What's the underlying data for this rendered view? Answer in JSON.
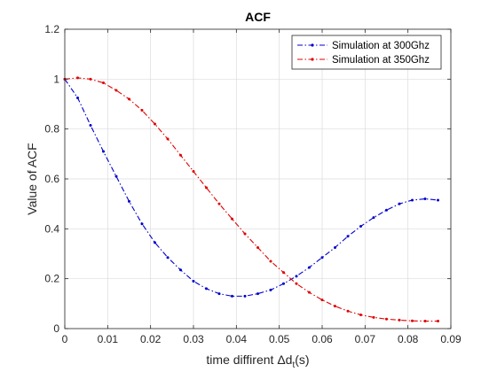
{
  "chart_data": {
    "type": "line",
    "title": "ACF",
    "xlabel_main": "time diffirent ",
    "xlabel_delta": "Δd",
    "xlabel_sub": "t",
    "xlabel_unit": "(s)",
    "ylabel": "Value of ACF",
    "xlim": [
      0,
      0.09
    ],
    "ylim": [
      0,
      1.2
    ],
    "xticks": [
      "0",
      "0.01",
      "0.02",
      "0.03",
      "0.04",
      "0.05",
      "0.06",
      "0.07",
      "0.08",
      "0.09"
    ],
    "yticks": [
      "0",
      "0.2",
      "0.4",
      "0.6",
      "0.8",
      "1",
      "1.2"
    ],
    "grid": true,
    "legend_position": "top-right",
    "series": [
      {
        "name": "Simulation at 300Ghz",
        "color": "#0000cc",
        "x": [
          0,
          0.003,
          0.006,
          0.009,
          0.012,
          0.015,
          0.018,
          0.021,
          0.024,
          0.027,
          0.03,
          0.033,
          0.036,
          0.039,
          0.042,
          0.045,
          0.048,
          0.051,
          0.054,
          0.057,
          0.06,
          0.063,
          0.066,
          0.069,
          0.072,
          0.075,
          0.078,
          0.081,
          0.084,
          0.087
        ],
        "y": [
          1.0,
          0.925,
          0.815,
          0.71,
          0.61,
          0.51,
          0.42,
          0.345,
          0.285,
          0.235,
          0.19,
          0.16,
          0.14,
          0.13,
          0.13,
          0.14,
          0.155,
          0.18,
          0.21,
          0.245,
          0.285,
          0.325,
          0.37,
          0.41,
          0.445,
          0.475,
          0.5,
          0.515,
          0.52,
          0.515
        ]
      },
      {
        "name": "Simulation at 350Ghz",
        "color": "#e00000",
        "x": [
          0,
          0.003,
          0.006,
          0.009,
          0.012,
          0.015,
          0.018,
          0.021,
          0.024,
          0.027,
          0.03,
          0.033,
          0.036,
          0.039,
          0.042,
          0.045,
          0.048,
          0.051,
          0.054,
          0.057,
          0.06,
          0.063,
          0.066,
          0.069,
          0.072,
          0.075,
          0.078,
          0.081,
          0.084,
          0.087
        ],
        "y": [
          1.0,
          1.005,
          1.0,
          0.985,
          0.955,
          0.92,
          0.875,
          0.82,
          0.76,
          0.695,
          0.63,
          0.565,
          0.5,
          0.44,
          0.38,
          0.325,
          0.27,
          0.225,
          0.18,
          0.145,
          0.115,
          0.09,
          0.07,
          0.055,
          0.045,
          0.038,
          0.034,
          0.031,
          0.03,
          0.03
        ]
      }
    ]
  }
}
